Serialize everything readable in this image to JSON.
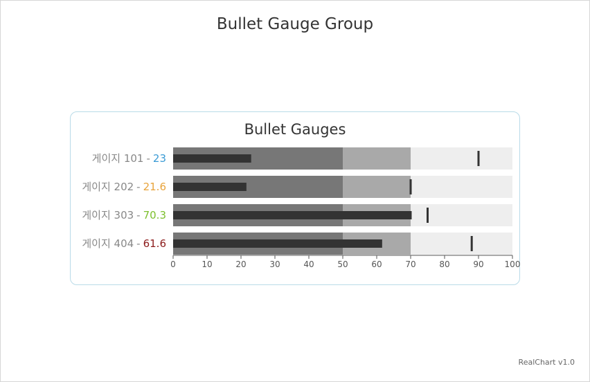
{
  "page": {
    "title": "Bullet Gauge Group",
    "credit": "RealChart v1.0"
  },
  "chart_data": {
    "type": "bullet",
    "title": "Bullet Gauges",
    "axis": {
      "min": 0,
      "max": 100,
      "ticks": [
        0,
        10,
        20,
        30,
        40,
        50,
        60,
        70,
        80,
        90,
        100
      ]
    },
    "bands": [
      {
        "from": 0,
        "to": 50,
        "color": "#777777"
      },
      {
        "from": 50,
        "to": 70,
        "color": "#a9a9a9"
      },
      {
        "from": 70,
        "to": 100,
        "color": "#eeeeee"
      }
    ],
    "bar_color": "#333333",
    "target_color": "#333333",
    "gauges": [
      {
        "name": "게이지 101",
        "sep": "-",
        "value": 23,
        "value_label": "23",
        "target": 90,
        "value_color": "#3a9bd5"
      },
      {
        "name": "게이지 202",
        "sep": "-",
        "value": 21.6,
        "value_label": "21.6",
        "target": 70,
        "value_color": "#e8a33a"
      },
      {
        "name": "게이지 303",
        "sep": "-",
        "value": 70.3,
        "value_label": "70.3",
        "target": 75,
        "value_color": "#7cbf2c"
      },
      {
        "name": "게이지 404",
        "sep": "-",
        "value": 61.6,
        "value_label": "61.6",
        "target": 88,
        "value_color": "#8b1a1a"
      }
    ]
  }
}
